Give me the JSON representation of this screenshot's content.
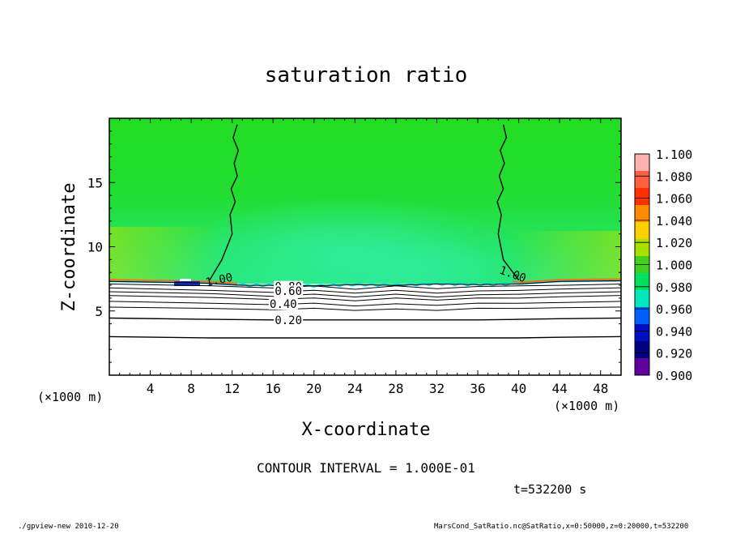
{
  "chart_data": {
    "type": "heatmap",
    "title": "saturation ratio",
    "xlabel": "X-coordinate",
    "ylabel": "Z-coordinate",
    "x_unit": "(×1000 m)",
    "y_unit": "(×1000 m)",
    "xlim": [
      0,
      50
    ],
    "ylim": [
      0,
      20
    ],
    "xticks": [
      4,
      8,
      12,
      16,
      20,
      24,
      28,
      32,
      36,
      40,
      44,
      48
    ],
    "yticks": [
      5,
      10,
      15
    ],
    "colorbar": {
      "levels": [
        "1.100",
        "1.080",
        "1.060",
        "1.040",
        "1.020",
        "1.000",
        "0.980",
        "0.960",
        "0.940",
        "0.920",
        "0.900"
      ],
      "colors": [
        "#ffb0b0",
        "#ff6040",
        "#ff3000",
        "#ff8c00",
        "#ffd000",
        "#a8e000",
        "#40d020",
        "#00e060",
        "#00e8c0",
        "#0060ff",
        "#0010c0",
        "#000080",
        "#6000a0"
      ]
    },
    "field_colors": {
      "upper": "#22dd22",
      "mid": "#22e86a",
      "boundary": "#ff6a1a",
      "dry": "#ffffff"
    },
    "contours": [
      {
        "label": "1.00",
        "x": [
          0,
          8,
          10,
          13,
          16,
          20,
          24,
          28,
          32,
          36,
          40,
          44,
          50
        ],
        "z": [
          7.3,
          7.2,
          7.15,
          7.0,
          7.0,
          6.95,
          7.05,
          7.0,
          7.1,
          7.05,
          7.1,
          7.3,
          7.35
        ]
      },
      {
        "label": "0.80",
        "x": [
          0,
          10,
          16,
          20,
          24,
          28,
          32,
          36,
          40,
          44,
          50
        ],
        "z": [
          7.1,
          6.95,
          6.85,
          6.9,
          6.75,
          6.9,
          6.8,
          6.85,
          6.95,
          7.0,
          7.1
        ]
      },
      {
        "label": "0.60",
        "x": [
          0,
          10,
          16,
          20,
          24,
          28,
          32,
          36,
          40,
          44,
          50
        ],
        "z": [
          6.8,
          6.6,
          6.5,
          6.55,
          6.45,
          6.55,
          6.45,
          6.5,
          6.6,
          6.7,
          6.8
        ]
      },
      {
        "label": "",
        "x": [
          0,
          10,
          16,
          20,
          24,
          28,
          32,
          36,
          40,
          44,
          50
        ],
        "z": [
          6.5,
          6.35,
          6.2,
          6.25,
          6.15,
          6.25,
          6.15,
          6.2,
          6.3,
          6.4,
          6.5
        ]
      },
      {
        "label": "",
        "x": [
          0,
          10,
          16,
          20,
          24,
          28,
          32,
          36,
          40,
          44,
          50
        ],
        "z": [
          6.2,
          6.05,
          5.95,
          5.95,
          5.85,
          5.95,
          5.9,
          5.95,
          6.0,
          6.1,
          6.2
        ]
      },
      {
        "label": "0.40",
        "x": [
          0,
          10,
          16,
          20,
          24,
          28,
          32,
          36,
          40,
          44,
          50
        ],
        "z": [
          5.75,
          5.6,
          5.55,
          5.55,
          5.45,
          5.5,
          5.5,
          5.55,
          5.6,
          5.65,
          5.75
        ]
      },
      {
        "label": "",
        "x": [
          0,
          10,
          16,
          20,
          24,
          28,
          32,
          36,
          40,
          44,
          50
        ],
        "z": [
          5.3,
          5.2,
          5.15,
          5.15,
          5.1,
          5.1,
          5.1,
          5.15,
          5.2,
          5.25,
          5.3
        ]
      },
      {
        "label": "0.20",
        "x": [
          0,
          10,
          16,
          20,
          24,
          28,
          32,
          36,
          40,
          44,
          50
        ],
        "z": [
          4.45,
          4.35,
          4.3,
          4.3,
          4.3,
          4.3,
          4.3,
          4.3,
          4.35,
          4.4,
          4.45
        ]
      },
      {
        "label": "",
        "x": [
          0,
          10,
          16,
          20,
          24,
          28,
          32,
          36,
          40,
          44,
          50
        ],
        "z": [
          3.0,
          2.9,
          2.9,
          2.9,
          2.9,
          2.9,
          2.9,
          2.9,
          2.9,
          2.95,
          3.0
        ]
      },
      {
        "label": "1.00",
        "x": [
          12.5,
          12.1,
          12.6,
          12.2,
          12.5,
          11.9,
          12.3,
          11.8,
          12.0,
          11.0,
          9.8
        ],
        "z": [
          19.5,
          18.5,
          17.5,
          16.5,
          15.5,
          14.5,
          13.5,
          12.5,
          11.0,
          9.0,
          7.4
        ]
      },
      {
        "label": "1.00",
        "x": [
          38.5,
          38.8,
          38.2,
          38.6,
          38.1,
          38.5,
          37.9,
          38.3,
          38.0,
          38.5,
          40.0
        ],
        "z": [
          19.5,
          18.5,
          17.5,
          16.5,
          15.5,
          14.5,
          13.5,
          12.5,
          11.0,
          9.0,
          7.4
        ]
      }
    ]
  },
  "labels": {
    "x_unit_left": "(×1000 m)",
    "x_unit_right": "(×1000 m)",
    "contour_interval": "CONTOUR INTERVAL = 1.000E-01",
    "time": "t=532200 s",
    "footer_left": "./gpview-new   2010-12-20",
    "footer_right": "MarsCond_SatRatio.nc@SatRatio,x=0:50000,z=0:20000,t=532200"
  }
}
